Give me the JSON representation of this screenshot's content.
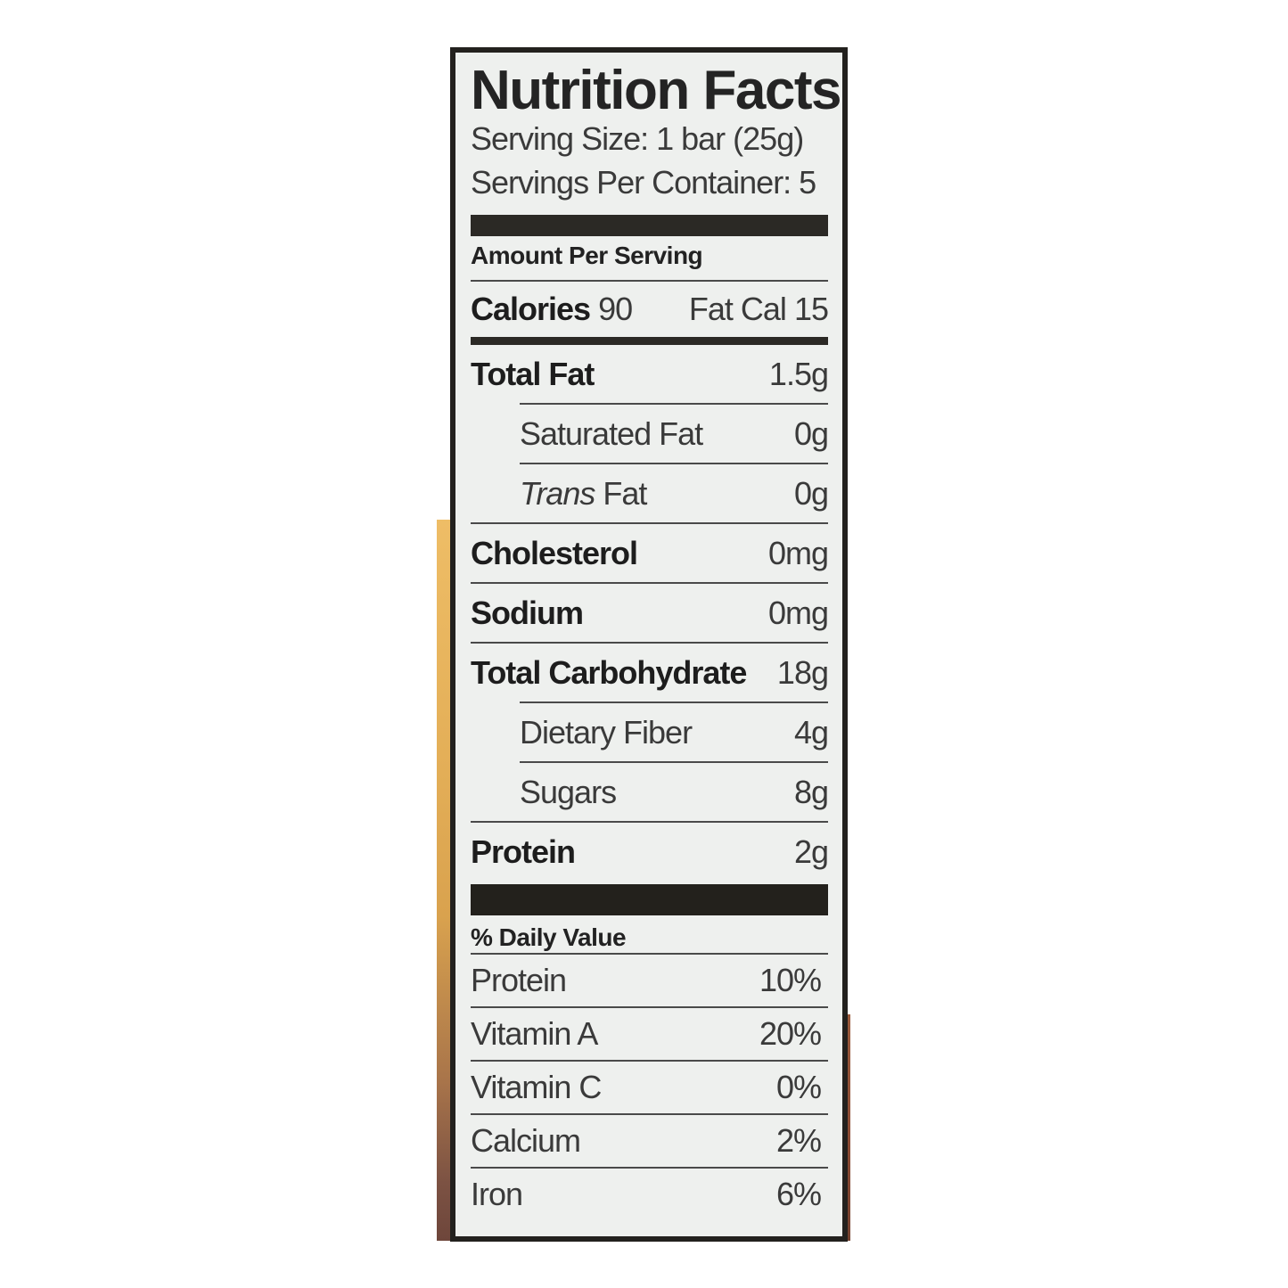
{
  "label": {
    "title": "Nutrition Facts",
    "serving_size": "Serving Size: 1 bar (25g)",
    "servings_per_container": "Servings Per Container: 5",
    "amount_per_serving": "Amount Per Serving",
    "calories": {
      "label": "Calories",
      "value": "90",
      "fat_cal_label": "Fat Cal",
      "fat_cal_value": "15"
    },
    "rows": [
      {
        "name": "Total Fat",
        "value": "1.5g"
      },
      {
        "name": "Saturated Fat",
        "value": "0g"
      },
      {
        "name_italic": "Trans",
        "name": " Fat",
        "value": "0g"
      },
      {
        "name": "Cholesterol",
        "value": "0mg"
      },
      {
        "name": "Sodium",
        "value": "0mg"
      },
      {
        "name": "Total Carbohydrate",
        "value": "18g"
      },
      {
        "name": "Dietary Fiber",
        "value": "4g"
      },
      {
        "name": "Sugars",
        "value": "8g"
      },
      {
        "name": "Protein",
        "value": "2g"
      }
    ],
    "daily_value_header": "% Daily Value",
    "daily_values": [
      {
        "name": "Protein",
        "value": "10%"
      },
      {
        "name": "Vitamin A",
        "value": "20%"
      },
      {
        "name": "Vitamin C",
        "value": "0%"
      },
      {
        "name": "Calcium",
        "value": "2%"
      },
      {
        "name": "Iron",
        "value": "6%"
      }
    ],
    "colors": {
      "label_background": "#eef0ee",
      "border": "#23211e",
      "divider_bar": "#2b2925",
      "package_edge_left_top": "#eebd66",
      "package_edge_left_bottom": "#6e463b",
      "package_edge_right": "#8a4a33"
    }
  }
}
